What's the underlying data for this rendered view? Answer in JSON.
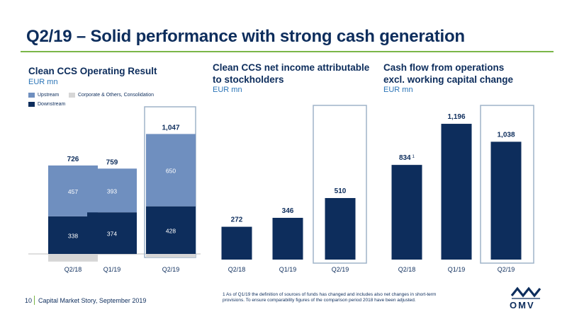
{
  "slide": {
    "title": "Q2/19 – Solid performance with strong cash generation",
    "page_number": "10",
    "footer_text": "Capital Market Story, September 2019",
    "footnote": "1 As of Q1/19 the definition of sources of funds has changed and includes also net changes in short-term provisions. To ensure comparability figures of the comparison period 2018 have been adjusted.",
    "logo_text": "OMV"
  },
  "colors": {
    "navy": "#0d2d5c",
    "upstream": "#6f8fbf",
    "corporate": "#d6d6d6",
    "highlight_border": "#9fb4c8",
    "accent_green": "#7ab648"
  },
  "panels": {
    "operating": {
      "title": "Clean CCS Operating Result",
      "unit": "EUR mn"
    },
    "net_income": {
      "title": "Clean CCS net income attributable to stockholders",
      "unit": "EUR mn"
    },
    "cash_flow": {
      "title": "Cash flow from operations excl. working capital change",
      "unit": "EUR mn"
    }
  },
  "legend": {
    "upstream": "Upstream",
    "corporate": "Corporate & Others, Consolidation",
    "downstream": "Downstream"
  },
  "chart_data": [
    {
      "type": "bar",
      "stacked": true,
      "title": "Clean CCS Operating Result",
      "ylabel": "EUR mn",
      "categories": [
        "Q2/18",
        "Q1/19",
        "Q2/19"
      ],
      "series": [
        {
          "name": "Downstream",
          "values": [
            338,
            374,
            428
          ]
        },
        {
          "name": "Upstream",
          "values": [
            457,
            393,
            650
          ]
        },
        {
          "name": "Corporate & Others, Consolidation",
          "values": [
            -69,
            -8,
            -31
          ]
        }
      ],
      "totals": [
        "726",
        "759",
        "1,047"
      ],
      "segment_labels": {
        "Downstream": [
          "338",
          "374",
          "428"
        ],
        "Upstream": [
          "457",
          "393",
          "650"
        ]
      },
      "highlight": "Q2/19"
    },
    {
      "type": "bar",
      "title": "Clean CCS net income attributable to stockholders",
      "ylabel": "EUR mn",
      "categories": [
        "Q2/18",
        "Q1/19",
        "Q2/19"
      ],
      "values": [
        272,
        346,
        510
      ],
      "value_labels": [
        "272",
        "346",
        "510"
      ],
      "highlight": "Q2/19"
    },
    {
      "type": "bar",
      "title": "Cash flow from operations excl. working capital change",
      "ylabel": "EUR mn",
      "categories": [
        "Q2/18",
        "Q1/19",
        "Q2/19"
      ],
      "values": [
        834,
        1196,
        1038
      ],
      "value_labels": [
        "834",
        "1,196",
        "1,038"
      ],
      "footnote_marker": [
        "1",
        "",
        ""
      ],
      "highlight": "Q2/19"
    }
  ]
}
